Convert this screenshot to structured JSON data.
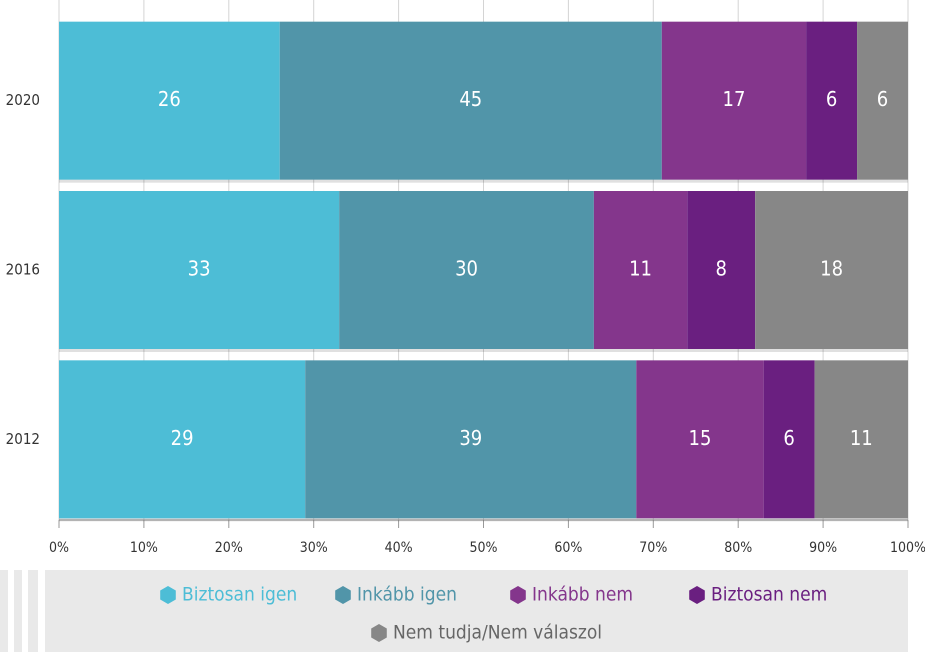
{
  "chart_data": {
    "type": "stacked-bar-horizontal",
    "categories": [
      "2020",
      "2016",
      "2012"
    ],
    "series": [
      {
        "name": "Biztosan igen",
        "color": "#4dbdd6",
        "values": [
          26,
          33,
          29
        ]
      },
      {
        "name": "Inkább igen",
        "color": "#5195a9",
        "values": [
          45,
          30,
          39
        ]
      },
      {
        "name": "Inkább nem",
        "color": "#84368c",
        "values": [
          17,
          11,
          15
        ]
      },
      {
        "name": "Biztosan nem",
        "color": "#6a1f80",
        "values": [
          6,
          8,
          6
        ]
      },
      {
        "name": "Nem tudja/Nem válaszol",
        "color": "#878787",
        "values": [
          6,
          18,
          11
        ]
      }
    ],
    "xlim": [
      0,
      100
    ],
    "xticks": [
      {
        "value": 0,
        "label": "0%"
      },
      {
        "value": 10,
        "label": "10%"
      },
      {
        "value": 20,
        "label": "20%"
      },
      {
        "value": 30,
        "label": "30%"
      },
      {
        "value": 40,
        "label": "40%"
      },
      {
        "value": 50,
        "label": "50%"
      },
      {
        "value": 60,
        "label": "60%"
      },
      {
        "value": 70,
        "label": "70%"
      },
      {
        "value": 80,
        "label": "80%"
      },
      {
        "value": 90,
        "label": "90%"
      },
      {
        "value": 100,
        "label": "100%"
      }
    ],
    "grid": true,
    "legend": "bottom"
  }
}
